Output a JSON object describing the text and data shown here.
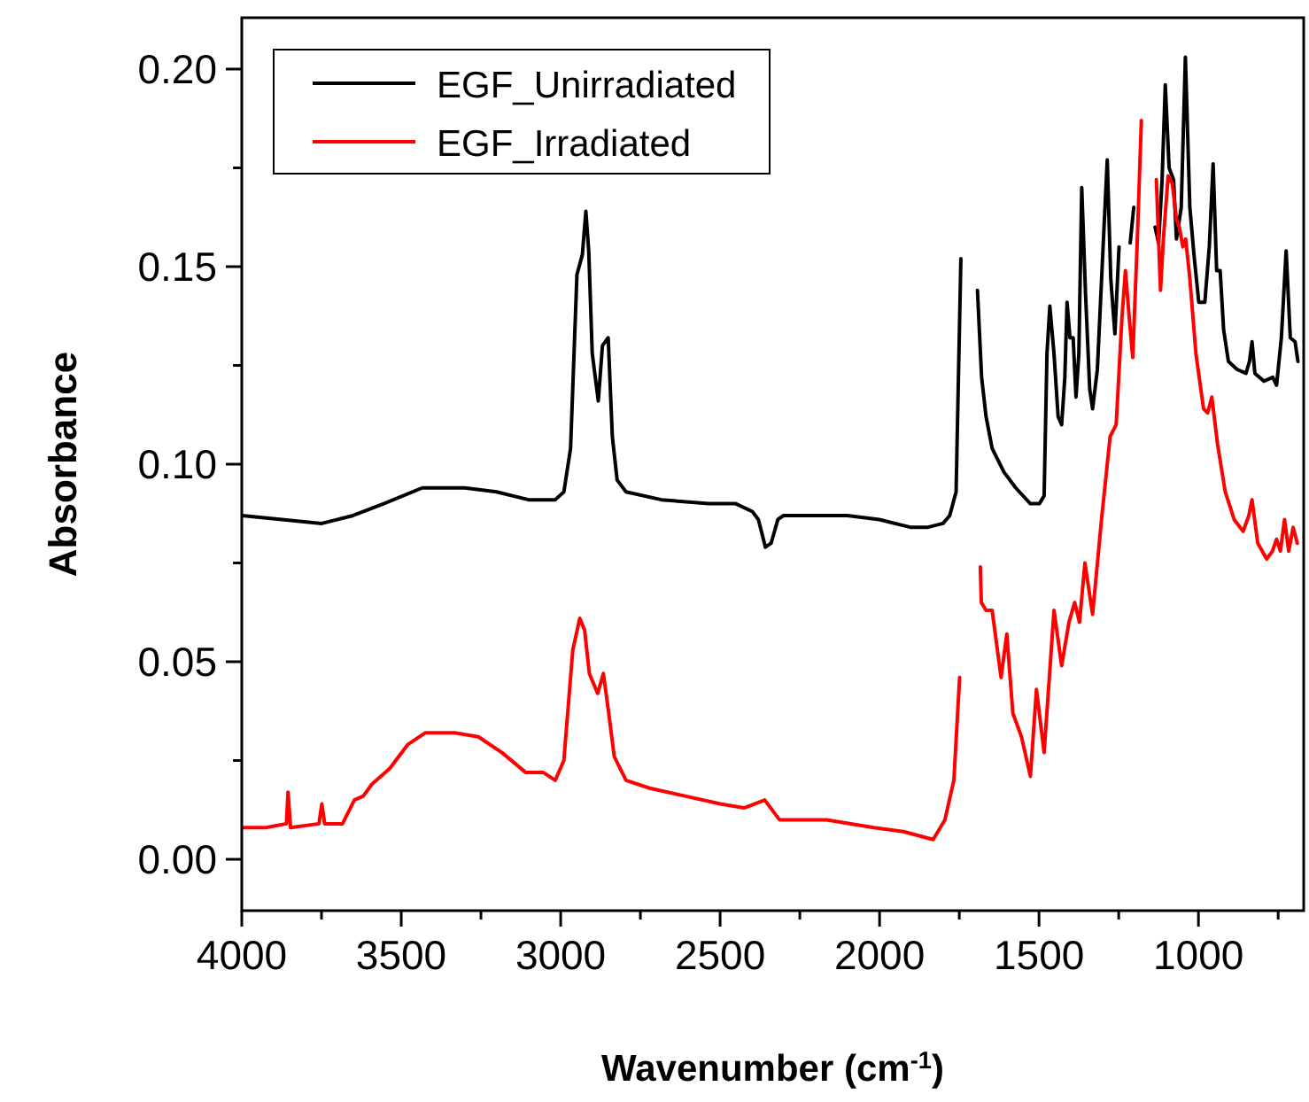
{
  "chart_data": {
    "type": "line",
    "xlabel": "Wavenumber (cm$^{-1}$)",
    "ylabel": "Absorbance",
    "xlim": [
      4000,
      670
    ],
    "ylim": [
      -0.013,
      0.213
    ],
    "xticks": [
      4000,
      {
        "value": 3750,
        "label": null
      },
      3500,
      {
        "value": 3250,
        "label": null
      },
      3000,
      {
        "value": 2750,
        "label": null
      },
      2500,
      {
        "value": 2250,
        "label": null
      },
      2000,
      {
        "value": 1750,
        "label": null
      },
      1500,
      {
        "value": 1250,
        "label": null
      },
      1000,
      {
        "value": 750,
        "label": null
      }
    ],
    "yticks": [
      {
        "value": 0,
        "label": "0.00"
      },
      {
        "value": 0.025,
        "label": null
      },
      {
        "value": 0.05,
        "label": "0.05"
      },
      {
        "value": 0.075,
        "label": null
      },
      {
        "value": 0.1,
        "label": "0.10"
      },
      {
        "value": 0.125,
        "label": null
      },
      {
        "value": 0.15,
        "label": "0.15"
      },
      {
        "value": 0.175,
        "label": null
      },
      {
        "value": 0.2,
        "label": "0.20"
      }
    ],
    "grid": false,
    "legend": "top left",
    "line_style": "solid",
    "marker": "none",
    "series": [
      {
        "name": "EGF_Unirradiated",
        "color": "#000000",
        "x": [
          3999,
          3749,
          3651,
          3555,
          3434,
          3301,
          3201,
          3101,
          3017,
          2990,
          2969,
          2949,
          2932,
          2921,
          2912,
          2901,
          2882,
          2869,
          2851,
          2838,
          2823,
          2795,
          2684,
          2536,
          2451,
          2399,
          2380,
          2358,
          2340,
          2319,
          2301,
          2201,
          2101,
          2001,
          1901,
          1851,
          1801,
          1780,
          1760,
          1745,
          1736,
          1725,
          1715,
          1693,
          1680,
          1666,
          1647,
          1610,
          1573,
          1527,
          1499,
          1484,
          1475,
          1466,
          1453,
          1440,
          1429,
          1419,
          1412,
          1403,
          1393,
          1384,
          1375,
          1366,
          1354,
          1341,
          1332,
          1317,
          1299,
          1286,
          1275,
          1262,
          1249,
          1236,
          1225,
          1214,
          1203,
          1191,
          1180,
          1150,
          1136,
          1125,
          1114,
          1104,
          1092,
          1078,
          1069,
          1054,
          1041,
          1027,
          1014,
          999,
          980,
          966,
          954,
          943,
          932,
          921,
          906,
          879,
          851,
          840,
          832,
          823,
          795,
          767,
          755,
          740,
          725,
          712,
          697,
          688
        ],
        "values": [
          0.087,
          0.085,
          0.087,
          0.09,
          0.094,
          0.094,
          0.093,
          0.091,
          0.091,
          0.093,
          0.104,
          0.148,
          0.153,
          0.164,
          0.154,
          0.128,
          0.116,
          0.13,
          0.132,
          0.107,
          0.096,
          0.093,
          0.091,
          0.09,
          0.09,
          0.088,
          0.086,
          0.079,
          0.08,
          0.086,
          0.087,
          0.087,
          0.087,
          0.086,
          0.084,
          0.084,
          0.085,
          0.087,
          0.093,
          0.152,
          null,
          null,
          null,
          0.144,
          0.122,
          0.112,
          0.104,
          0.098,
          0.094,
          0.09,
          0.09,
          0.092,
          0.128,
          0.14,
          0.128,
          0.112,
          0.11,
          0.122,
          0.141,
          0.132,
          0.132,
          0.117,
          0.128,
          0.17,
          0.143,
          0.119,
          0.114,
          0.124,
          0.155,
          0.177,
          0.147,
          0.133,
          0.155,
          null,
          null,
          0.156,
          0.165,
          null,
          null,
          null,
          0.16,
          0.156,
          0.172,
          0.196,
          0.175,
          0.172,
          0.157,
          0.165,
          0.203,
          0.165,
          0.153,
          0.141,
          0.141,
          0.155,
          0.176,
          0.149,
          0.149,
          0.134,
          0.126,
          0.124,
          0.123,
          0.126,
          0.131,
          0.123,
          0.121,
          0.122,
          0.12,
          0.132,
          0.154,
          0.132,
          0.131,
          0.126
        ]
      },
      {
        "name": "EGF_Irradiated",
        "color": "#ff0000",
        "x": [
          3999,
          3925,
          3860,
          3855,
          3847,
          3758,
          3749,
          3740,
          3684,
          3647,
          3619,
          3592,
          3536,
          3480,
          3425,
          3332,
          3258,
          3184,
          3110,
          3055,
          3017,
          2990,
          2962,
          2940,
          2925,
          2910,
          2884,
          2866,
          2851,
          2832,
          2795,
          2721,
          2610,
          2499,
          2425,
          2360,
          2314,
          2166,
          2018,
          1925,
          1832,
          1795,
          1767,
          1749,
          1736,
          1725,
          1715,
          1684,
          1681,
          1666,
          1647,
          1619,
          1601,
          1582,
          1555,
          1527,
          1508,
          1484,
          1453,
          1429,
          1406,
          1388,
          1373,
          1356,
          1332,
          1304,
          1277,
          1258,
          1240,
          1229,
          1217,
          1206,
          1193,
          1179,
          1169,
          1143,
          1132,
          1119,
          1110,
          1095,
          1082,
          1069,
          1060,
          1049,
          1040,
          1027,
          1008,
          984,
          971,
          958,
          940,
          916,
          888,
          860,
          842,
          832,
          814,
          786,
          768,
          755,
          743,
          730,
          717,
          703,
          690
        ],
        "values": [
          0.008,
          0.008,
          0.009,
          0.017,
          0.008,
          0.009,
          0.014,
          0.009,
          0.009,
          0.015,
          0.016,
          0.019,
          0.023,
          0.029,
          0.032,
          0.032,
          0.031,
          0.027,
          0.022,
          0.022,
          0.02,
          0.025,
          0.053,
          0.061,
          0.058,
          0.047,
          0.042,
          0.047,
          0.038,
          0.026,
          0.02,
          0.018,
          0.016,
          0.014,
          0.013,
          0.015,
          0.01,
          0.01,
          0.008,
          0.007,
          0.005,
          0.01,
          0.02,
          0.046,
          null,
          null,
          null,
          0.074,
          0.065,
          0.063,
          0.063,
          0.046,
          0.057,
          0.037,
          0.031,
          0.021,
          0.043,
          0.027,
          0.063,
          0.049,
          0.06,
          0.065,
          0.06,
          0.075,
          0.062,
          0.086,
          0.107,
          0.11,
          0.137,
          0.149,
          0.137,
          0.127,
          0.154,
          0.187,
          null,
          null,
          0.172,
          0.144,
          0.157,
          0.173,
          0.171,
          0.162,
          0.16,
          0.155,
          0.157,
          0.147,
          0.128,
          0.114,
          0.113,
          0.117,
          0.105,
          0.093,
          0.086,
          0.083,
          0.087,
          0.091,
          0.08,
          0.076,
          0.078,
          0.081,
          0.078,
          0.086,
          0.078,
          0.084,
          0.08
        ]
      }
    ]
  }
}
